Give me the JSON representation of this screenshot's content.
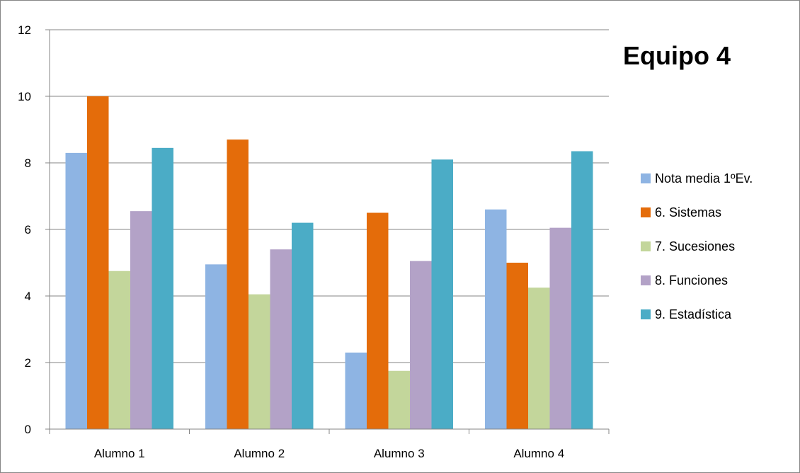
{
  "chart_data": {
    "type": "bar",
    "title": "Equipo 4",
    "categories": [
      "Alumno 1",
      "Alumno 2",
      "Alumno 3",
      "Alumno 4"
    ],
    "series": [
      {
        "name": "Nota media 1ºEv.",
        "color": "#8EB4E3",
        "values": [
          8.3,
          4.95,
          2.3,
          6.6
        ]
      },
      {
        "name": "6. Sistemas",
        "color": "#E46C0A",
        "values": [
          10,
          8.7,
          6.5,
          5.0
        ]
      },
      {
        "name": "7. Sucesiones",
        "color": "#C3D69B",
        "values": [
          4.75,
          4.05,
          1.75,
          4.25
        ]
      },
      {
        "name": "8. Funciones",
        "color": "#B3A2C7",
        "values": [
          6.55,
          5.4,
          5.05,
          6.05
        ]
      },
      {
        "name": "9. Estadística",
        "color": "#4BACC6",
        "values": [
          8.45,
          6.2,
          8.1,
          8.35
        ]
      }
    ],
    "yticks": [
      "0",
      "2",
      "4",
      "6",
      "8",
      "10",
      "12"
    ],
    "ylim": [
      0,
      12
    ],
    "grid": true,
    "legend_position": "right"
  }
}
